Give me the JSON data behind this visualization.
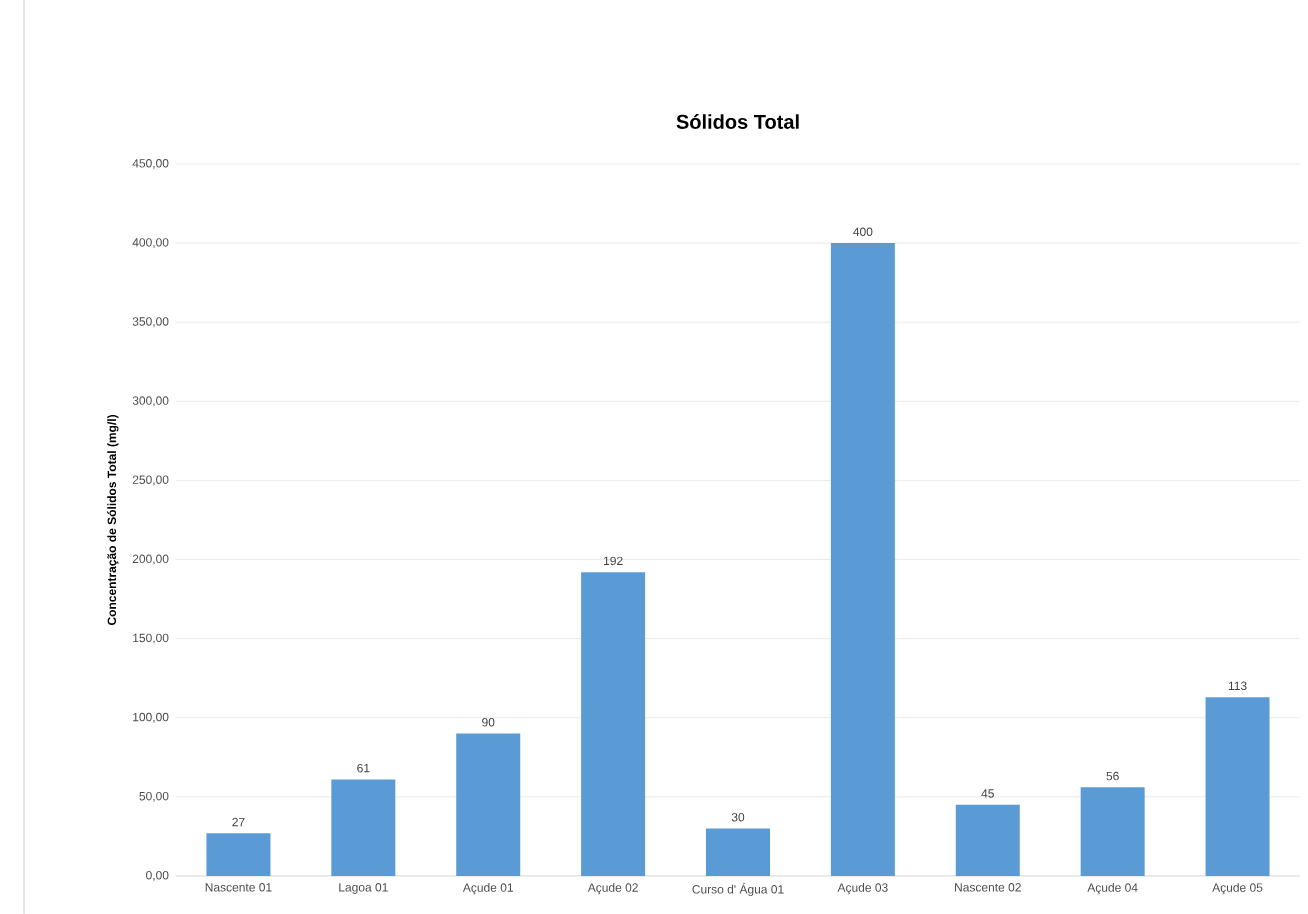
{
  "chart_data": {
    "type": "bar",
    "title": "Sólidos Total",
    "ylabel": "Concentração de Sólidos Total (mg/l)",
    "categories": [
      "Nascente 01",
      "Lagoa 01",
      "Açude 01",
      "Açude 02",
      "Curso d' Água 01",
      "Açude 03",
      "Nascente 02",
      "Açude 04",
      "Açude 05"
    ],
    "values": [
      27,
      61,
      90,
      192,
      30,
      400,
      45,
      56,
      113
    ],
    "color": "#5b9bd5",
    "ylim": [
      0,
      450
    ],
    "yticks": [
      {
        "value": 0,
        "label": "0,00"
      },
      {
        "value": 50,
        "label": "50,00"
      },
      {
        "value": 100,
        "label": "100,00"
      },
      {
        "value": 150,
        "label": "150,00"
      },
      {
        "value": 200,
        "label": "200,00"
      },
      {
        "value": 250,
        "label": "250,00"
      },
      {
        "value": 300,
        "label": "300,00"
      },
      {
        "value": 350,
        "label": "350,00"
      },
      {
        "value": 400,
        "label": "400,00"
      },
      {
        "value": 450,
        "label": "450,00"
      }
    ],
    "grid": "y",
    "data_labels": true
  }
}
